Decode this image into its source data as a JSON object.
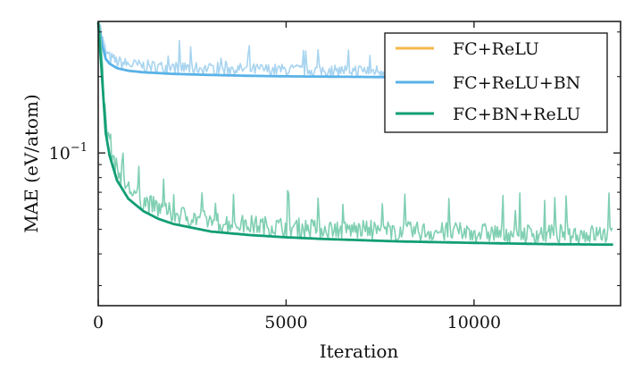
{
  "chart_data": {
    "type": "line",
    "xlabel": "Iteration",
    "ylabel": "MAE (eV/atom)",
    "xlim": [
      0,
      13900
    ],
    "ylim": [
      0.025,
      0.33
    ],
    "yscale": "log",
    "x_ticks": [
      0,
      5000,
      10000
    ],
    "x_tick_labels": [
      "0",
      "5000",
      "10000"
    ],
    "y_tick_labels": [
      {
        "value": 0.1,
        "base": "10",
        "exponent": "−1"
      }
    ],
    "grid": false,
    "legend_position": "top-right",
    "legend": [
      "FC+ReLU",
      "FC+ReLU+BN",
      "FC+BN+ReLU"
    ],
    "colors": {
      "FC+ReLU": "#f5b84a",
      "FC+ReLU+BN": "#59b2e8",
      "FC+ReLU+BN_noisy": "#a8d4f0",
      "FC+BN+ReLU": "#129e74",
      "FC+BN+ReLU_noisy": "#7fcfb2"
    },
    "series": [
      {
        "name": "FC+ReLU",
        "x": [],
        "y": []
      },
      {
        "name": "FC+ReLU+BN",
        "x": [
          0,
          100,
          200,
          300,
          500,
          800,
          1200,
          2000,
          3000,
          4000,
          5000,
          6000,
          7000,
          7800
        ],
        "y": [
          0.33,
          0.27,
          0.235,
          0.225,
          0.216,
          0.211,
          0.208,
          0.205,
          0.203,
          0.2015,
          0.2005,
          0.2,
          0.1995,
          0.199
        ],
        "noise_amplitude": 0.12
      },
      {
        "name": "FC+BN+ReLU",
        "x": [
          0,
          100,
          200,
          300,
          500,
          800,
          1200,
          1600,
          2000,
          3000,
          4000,
          5000,
          6000,
          8000,
          10000,
          12000,
          13700
        ],
        "y": [
          0.33,
          0.2,
          0.12,
          0.098,
          0.078,
          0.066,
          0.059,
          0.055,
          0.0525,
          0.049,
          0.0475,
          0.0465,
          0.0458,
          0.0448,
          0.0442,
          0.0437,
          0.0435
        ],
        "noise_amplitude": 0.2
      }
    ]
  }
}
